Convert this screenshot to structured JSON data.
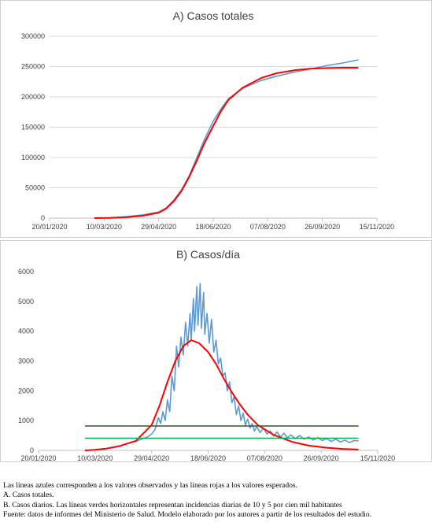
{
  "chart_data": [
    {
      "type": "line",
      "title": "A) Casos totales",
      "xlabel": "",
      "ylabel": "",
      "x_ticks": [
        "20/01/2020",
        "10/03/2020",
        "29/04/2020",
        "18/06/2020",
        "07/08/2020",
        "26/09/2020",
        "15/11/2020"
      ],
      "y_ticks": [
        "0",
        "50000",
        "100000",
        "150000",
        "200000",
        "250000",
        "300000"
      ],
      "xlim": [
        "2020-01-20",
        "2020-11-15"
      ],
      "ylim": [
        0,
        300000
      ],
      "grid": "horizontal",
      "series": [
        {
          "color": "#5b9bd5",
          "points": [
            [
              "2020-03-01",
              0
            ],
            [
              "2020-03-15",
              500
            ],
            [
              "2020-03-31",
              2500
            ],
            [
              "2020-04-15",
              5500
            ],
            [
              "2020-04-29",
              10000
            ],
            [
              "2020-05-06",
              17000
            ],
            [
              "2020-05-13",
              30000
            ],
            [
              "2020-05-20",
              47000
            ],
            [
              "2020-05-27",
              70000
            ],
            [
              "2020-06-03",
              100000
            ],
            [
              "2020-06-10",
              130000
            ],
            [
              "2020-06-18",
              160000
            ],
            [
              "2020-06-25",
              180000
            ],
            [
              "2020-07-02",
              197000
            ],
            [
              "2020-07-15",
              214000
            ],
            [
              "2020-08-01",
              227000
            ],
            [
              "2020-08-15",
              234000
            ],
            [
              "2020-09-01",
              241000
            ],
            [
              "2020-09-15",
              246000
            ],
            [
              "2020-10-01",
              252000
            ],
            [
              "2020-10-15",
              256000
            ],
            [
              "2020-10-29",
              261000
            ]
          ]
        },
        {
          "color": "#ff0000",
          "points": [
            [
              "2020-03-01",
              0
            ],
            [
              "2020-03-15",
              200
            ],
            [
              "2020-03-31",
              1500
            ],
            [
              "2020-04-15",
              4000
            ],
            [
              "2020-04-29",
              9000
            ],
            [
              "2020-05-06",
              16000
            ],
            [
              "2020-05-13",
              28000
            ],
            [
              "2020-05-20",
              45000
            ],
            [
              "2020-05-27",
              68000
            ],
            [
              "2020-06-03",
              95000
            ],
            [
              "2020-06-10",
              124000
            ],
            [
              "2020-06-18",
              152000
            ],
            [
              "2020-06-25",
              176000
            ],
            [
              "2020-07-02",
              195000
            ],
            [
              "2020-07-15",
              215000
            ],
            [
              "2020-08-01",
              231000
            ],
            [
              "2020-08-15",
              239000
            ],
            [
              "2020-09-01",
              244000
            ],
            [
              "2020-09-15",
              246500
            ],
            [
              "2020-10-01",
              247500
            ],
            [
              "2020-10-15",
              248000
            ],
            [
              "2020-10-29",
              248000
            ]
          ]
        }
      ]
    },
    {
      "type": "line",
      "title": "B) Casos/día",
      "xlabel": "",
      "ylabel": "",
      "x_ticks": [
        "20/01/2020",
        "10/03/2020",
        "29/04/2020",
        "18/06/2020",
        "07/08/2020",
        "26/09/2020",
        "15/11/2020"
      ],
      "y_ticks": [
        "0",
        "1000",
        "2000",
        "3000",
        "4000",
        "5000",
        "6000"
      ],
      "xlim": [
        "2020-01-20",
        "2020-11-15"
      ],
      "ylim": [
        0,
        6000
      ],
      "grid": "none",
      "series": [
        {
          "color": "#5b9bd5",
          "points": [
            [
              "2020-03-01",
              0
            ],
            [
              "2020-03-10",
              20
            ],
            [
              "2020-03-20",
              60
            ],
            [
              "2020-03-30",
              120
            ],
            [
              "2020-04-05",
              200
            ],
            [
              "2020-04-10",
              260
            ],
            [
              "2020-04-15",
              300
            ],
            [
              "2020-04-20",
              380
            ],
            [
              "2020-04-25",
              450
            ],
            [
              "2020-04-29",
              550
            ],
            [
              "2020-05-02",
              700
            ],
            [
              "2020-05-05",
              1100
            ],
            [
              "2020-05-07",
              900
            ],
            [
              "2020-05-09",
              1300
            ],
            [
              "2020-05-11",
              1000
            ],
            [
              "2020-05-13",
              1700
            ],
            [
              "2020-05-15",
              1300
            ],
            [
              "2020-05-17",
              2500
            ],
            [
              "2020-05-19",
              2000
            ],
            [
              "2020-05-21",
              3500
            ],
            [
              "2020-05-23",
              2800
            ],
            [
              "2020-05-25",
              3800
            ],
            [
              "2020-05-27",
              3200
            ],
            [
              "2020-05-29",
              4300
            ],
            [
              "2020-05-31",
              3500
            ],
            [
              "2020-06-02",
              4600
            ],
            [
              "2020-06-03",
              3700
            ],
            [
              "2020-06-05",
              5100
            ],
            [
              "2020-06-06",
              4000
            ],
            [
              "2020-06-08",
              5500
            ],
            [
              "2020-06-09",
              4200
            ],
            [
              "2020-06-11",
              5600
            ],
            [
              "2020-06-12",
              4100
            ],
            [
              "2020-06-14",
              5300
            ],
            [
              "2020-06-15",
              3900
            ],
            [
              "2020-06-17",
              4600
            ],
            [
              "2020-06-19",
              3600
            ],
            [
              "2020-06-21",
              4400
            ],
            [
              "2020-06-23",
              3300
            ],
            [
              "2020-06-25",
              3700
            ],
            [
              "2020-06-27",
              2900
            ],
            [
              "2020-06-29",
              3100
            ],
            [
              "2020-07-01",
              2500
            ],
            [
              "2020-07-03",
              2600
            ],
            [
              "2020-07-05",
              2000
            ],
            [
              "2020-07-07",
              2300
            ],
            [
              "2020-07-09",
              1600
            ],
            [
              "2020-07-11",
              1800
            ],
            [
              "2020-07-13",
              1200
            ],
            [
              "2020-07-15",
              1500
            ],
            [
              "2020-07-17",
              1000
            ],
            [
              "2020-07-19",
              1250
            ],
            [
              "2020-07-21",
              850
            ],
            [
              "2020-07-23",
              1050
            ],
            [
              "2020-07-25",
              750
            ],
            [
              "2020-07-27",
              900
            ],
            [
              "2020-07-29",
              650
            ],
            [
              "2020-07-31",
              800
            ],
            [
              "2020-08-03",
              600
            ],
            [
              "2020-08-06",
              750
            ],
            [
              "2020-08-09",
              550
            ],
            [
              "2020-08-12",
              650
            ],
            [
              "2020-08-15",
              480
            ],
            [
              "2020-08-18",
              620
            ],
            [
              "2020-08-21",
              450
            ],
            [
              "2020-08-24",
              580
            ],
            [
              "2020-08-27",
              420
            ],
            [
              "2020-08-30",
              520
            ],
            [
              "2020-09-03",
              400
            ],
            [
              "2020-09-07",
              500
            ],
            [
              "2020-09-11",
              380
            ],
            [
              "2020-09-15",
              450
            ],
            [
              "2020-09-19",
              350
            ],
            [
              "2020-09-23",
              430
            ],
            [
              "2020-09-27",
              330
            ],
            [
              "2020-10-01",
              400
            ],
            [
              "2020-10-05",
              300
            ],
            [
              "2020-10-09",
              380
            ],
            [
              "2020-10-13",
              280
            ],
            [
              "2020-10-17",
              350
            ],
            [
              "2020-10-21",
              260
            ],
            [
              "2020-10-25",
              330
            ],
            [
              "2020-10-29",
              320
            ]
          ]
        },
        {
          "color": "#ff0000",
          "points": [
            [
              "2020-03-01",
              0
            ],
            [
              "2020-03-10",
              20
            ],
            [
              "2020-03-20",
              60
            ],
            [
              "2020-04-01",
              150
            ],
            [
              "2020-04-15",
              320
            ],
            [
              "2020-04-29",
              850
            ],
            [
              "2020-05-06",
              1500
            ],
            [
              "2020-05-13",
              2300
            ],
            [
              "2020-05-20",
              3000
            ],
            [
              "2020-05-27",
              3500
            ],
            [
              "2020-06-03",
              3700
            ],
            [
              "2020-06-10",
              3600
            ],
            [
              "2020-06-18",
              3300
            ],
            [
              "2020-06-25",
              2900
            ],
            [
              "2020-07-02",
              2400
            ],
            [
              "2020-07-09",
              1950
            ],
            [
              "2020-07-16",
              1550
            ],
            [
              "2020-07-23",
              1200
            ],
            [
              "2020-08-01",
              850
            ],
            [
              "2020-08-15",
              520
            ],
            [
              "2020-09-01",
              280
            ],
            [
              "2020-09-15",
              160
            ],
            [
              "2020-10-01",
              90
            ],
            [
              "2020-10-15",
              50
            ],
            [
              "2020-10-29",
              30
            ]
          ]
        },
        {
          "color": "#375623",
          "points": [
            [
              "2020-03-01",
              820
            ],
            [
              "2020-10-29",
              820
            ]
          ]
        },
        {
          "color": "#00b050",
          "points": [
            [
              "2020-03-01",
              410
            ],
            [
              "2020-10-29",
              410
            ]
          ]
        }
      ]
    }
  ],
  "caption": {
    "line1": "Las líneas azules corresponden a los valores observados y las líneas rojas a los valores esperados.",
    "line2": "A. Casos totales.",
    "line3": "B. Casos diarios. Las líneas verdes horizontales representan incidencias diarias de 10 y 5 por cien mil habitantes",
    "line4": "Fuente: datos de informes del Ministerio de Salud. Modelo elaborado por los autores a partir de los resultados del estudio."
  }
}
